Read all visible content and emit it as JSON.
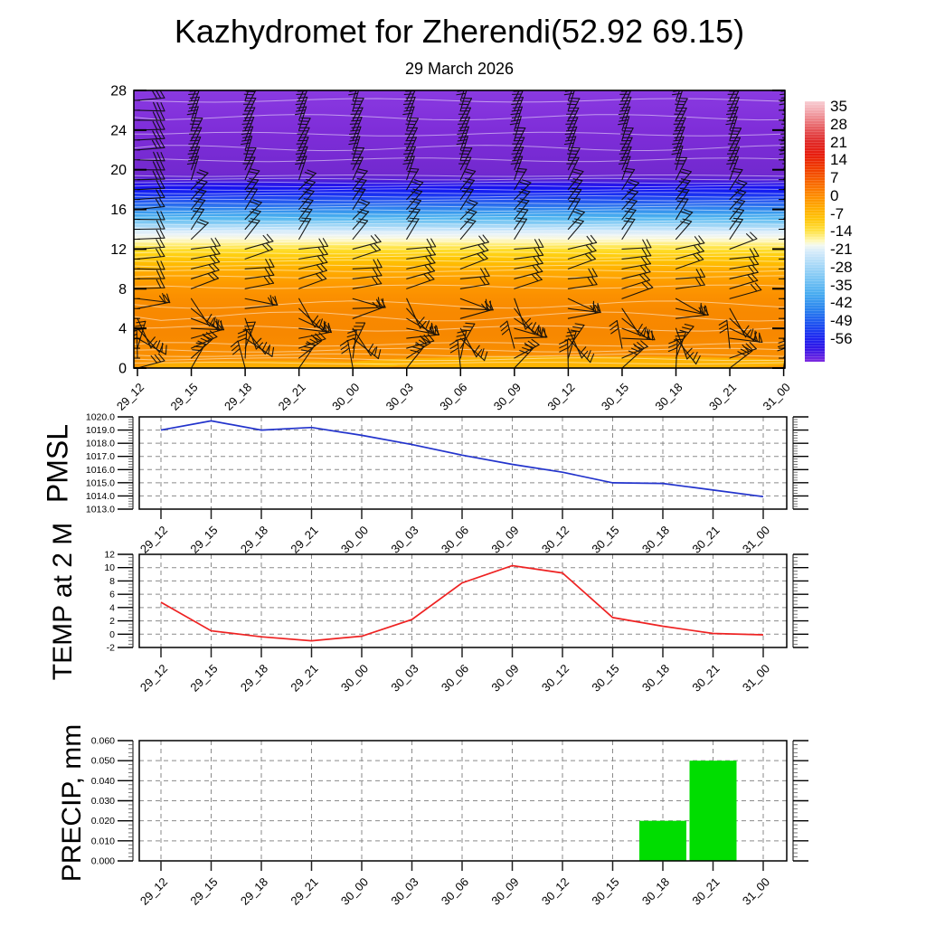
{
  "title": "Kazhydromet for Zherendi(52.92 69.15)",
  "subtitle": "29 March 2026",
  "times": [
    "29_12",
    "29_15",
    "29_18",
    "29_21",
    "30_00",
    "30_03",
    "30_06",
    "30_09",
    "30_12",
    "30_15",
    "30_18",
    "30_21",
    "31_00"
  ],
  "chart_data": [
    {
      "type": "heatmap",
      "name": "temperature-wind-cross-section",
      "x_labels": [
        "29_12",
        "29_15",
        "29_18",
        "29_21",
        "30_00",
        "30_03",
        "30_06",
        "30_09",
        "30_12",
        "30_15",
        "30_18",
        "30_21",
        "31_00"
      ],
      "y_range": [
        0,
        28
      ],
      "y_ticks": [
        0,
        4,
        8,
        12,
        16,
        20,
        24,
        28
      ],
      "colorbar_ticks": [
        35,
        28,
        21,
        14,
        7,
        0,
        -7,
        -14,
        -21,
        -28,
        -35,
        -42,
        -49,
        -56
      ],
      "gradient": [
        {
          "pos": 0.0,
          "color": "#8a3ae1"
        },
        {
          "pos": 0.15,
          "color": "#7e2dd8"
        },
        {
          "pos": 0.3,
          "color": "#7229cf"
        },
        {
          "pos": 0.322,
          "color": "#5520d6"
        },
        {
          "pos": 0.338,
          "color": "#2a15e9"
        },
        {
          "pos": 0.352,
          "color": "#1412f1"
        },
        {
          "pos": 0.368,
          "color": "#1524f1"
        },
        {
          "pos": 0.385,
          "color": "#1d41f1"
        },
        {
          "pos": 0.4,
          "color": "#2458ef"
        },
        {
          "pos": 0.42,
          "color": "#2d7bee"
        },
        {
          "pos": 0.44,
          "color": "#3a9bee"
        },
        {
          "pos": 0.458,
          "color": "#4db3f0"
        },
        {
          "pos": 0.474,
          "color": "#79c7f3"
        },
        {
          "pos": 0.49,
          "color": "#a8d9f7"
        },
        {
          "pos": 0.505,
          "color": "#cfe8fa"
        },
        {
          "pos": 0.52,
          "color": "#eaf3f6"
        },
        {
          "pos": 0.533,
          "color": "#f9f8dd"
        },
        {
          "pos": 0.547,
          "color": "#fff3a0"
        },
        {
          "pos": 0.56,
          "color": "#ffe95e"
        },
        {
          "pos": 0.575,
          "color": "#ffdd2a"
        },
        {
          "pos": 0.593,
          "color": "#ffcf10"
        },
        {
          "pos": 0.615,
          "color": "#ffc102"
        },
        {
          "pos": 0.65,
          "color": "#ffac00"
        },
        {
          "pos": 0.695,
          "color": "#fe9b00"
        },
        {
          "pos": 0.74,
          "color": "#fb9000"
        },
        {
          "pos": 0.8,
          "color": "#f88900"
        },
        {
          "pos": 0.88,
          "color": "#f78800"
        },
        {
          "pos": 0.945,
          "color": "#f98e01"
        },
        {
          "pos": 1.0,
          "color": "#fc9a05"
        }
      ],
      "colorbar_gradient": [
        {
          "pos": 0.0,
          "color": "#f8cdd3"
        },
        {
          "pos": 0.035,
          "color": "#f3abb1"
        },
        {
          "pos": 0.075,
          "color": "#ec7d82"
        },
        {
          "pos": 0.115,
          "color": "#e44f52"
        },
        {
          "pos": 0.155,
          "color": "#e02a28"
        },
        {
          "pos": 0.205,
          "color": "#e71d0e"
        },
        {
          "pos": 0.255,
          "color": "#f03c00"
        },
        {
          "pos": 0.305,
          "color": "#f76200"
        },
        {
          "pos": 0.355,
          "color": "#fd8600"
        },
        {
          "pos": 0.405,
          "color": "#ffa900"
        },
        {
          "pos": 0.455,
          "color": "#ffc70c"
        },
        {
          "pos": 0.5,
          "color": "#ffe348"
        },
        {
          "pos": 0.535,
          "color": "#fff8b4"
        },
        {
          "pos": 0.553,
          "color": "#f3f9f0"
        },
        {
          "pos": 0.575,
          "color": "#d8ecfa"
        },
        {
          "pos": 0.625,
          "color": "#abdaf8"
        },
        {
          "pos": 0.68,
          "color": "#7cc6f4"
        },
        {
          "pos": 0.74,
          "color": "#48acf0"
        },
        {
          "pos": 0.8,
          "color": "#2a82ee"
        },
        {
          "pos": 0.86,
          "color": "#1c4df0"
        },
        {
          "pos": 0.91,
          "color": "#1e26f0"
        },
        {
          "pos": 0.95,
          "color": "#3416e6"
        },
        {
          "pos": 1.0,
          "color": "#7e2ae0"
        }
      ],
      "contour_levels": [
        [
          27.0,
          2
        ],
        [
          25.3,
          3
        ],
        [
          23.6,
          2
        ],
        [
          22.2,
          3
        ],
        [
          21.0,
          2
        ],
        [
          19.4,
          0.8
        ],
        [
          19.05,
          0.8
        ],
        [
          18.7,
          0.8
        ],
        [
          18.35,
          0.8
        ],
        [
          18.0,
          0.8
        ],
        [
          17.65,
          0.8
        ],
        [
          17.3,
          0.8
        ],
        [
          16.95,
          0.8
        ],
        [
          16.6,
          0.8
        ],
        [
          16.25,
          0.8
        ],
        [
          15.9,
          0.8
        ],
        [
          15.55,
          0.8
        ],
        [
          15.2,
          0.8
        ],
        [
          14.85,
          0.8
        ],
        [
          14.5,
          0.8
        ],
        [
          14.15,
          0.8
        ],
        [
          13.8,
          0.8
        ],
        [
          13.45,
          0.8
        ],
        [
          13.1,
          0.8
        ],
        [
          12.75,
          0.8
        ],
        [
          12.4,
          0.8
        ],
        [
          12.05,
          0.8
        ],
        [
          11.6,
          1
        ],
        [
          11.2,
          1
        ],
        [
          10.8,
          1
        ],
        [
          10.3,
          1
        ],
        [
          9.8,
          1.2
        ],
        [
          9.2,
          1.2
        ],
        [
          8.2,
          2
        ],
        [
          6.4,
          4
        ],
        [
          5.2,
          5
        ],
        [
          4.0,
          3
        ],
        [
          2.4,
          2
        ],
        [
          1.8,
          2
        ],
        [
          1.3,
          1.5
        ],
        [
          0.9,
          1.5
        ],
        [
          0.5,
          1
        ]
      ],
      "wind_barb_bands": [
        {
          "min": 19,
          "max": 28,
          "angle": 68,
          "len": 27,
          "feathers": 3,
          "jitter": 6
        },
        {
          "min": 13,
          "max": 18,
          "angle": 52,
          "len": 26,
          "feathers": 2,
          "jitter": 8
        },
        {
          "min": 8,
          "max": 12,
          "angle": 12,
          "len": 32,
          "feathers": 2,
          "jitter": 9
        },
        {
          "min": 3,
          "max": 7,
          "angle": -25,
          "len": 36,
          "feathers": 2,
          "jitter": 45
        },
        {
          "min": 0,
          "max": 2,
          "angle": 60,
          "len": 31,
          "feathers": 3,
          "jitter": 45
        }
      ]
    },
    {
      "type": "line",
      "name": "PMSL",
      "x_labels": [
        "29_12",
        "29_15",
        "29_18",
        "29_21",
        "30_00",
        "30_03",
        "30_06",
        "30_09",
        "30_12",
        "30_15",
        "30_18",
        "30_21",
        "31_00"
      ],
      "values": [
        1019.0,
        1019.7,
        1019.0,
        1019.2,
        1018.6,
        1017.9,
        1017.1,
        1016.4,
        1015.8,
        1015.0,
        1014.95,
        1014.45,
        1013.95
      ],
      "ylim": [
        1013.0,
        1020.0
      ],
      "y_ticks": [
        "1020.0",
        "1019.0",
        "1018.0",
        "1017.0",
        "1016.0",
        "1015.0",
        "1014.0",
        "1013.0"
      ],
      "color": "#2233cc"
    },
    {
      "type": "line",
      "name": "TEMP at 2 M",
      "x_labels": [
        "29_12",
        "29_15",
        "29_18",
        "29_21",
        "30_00",
        "30_03",
        "30_06",
        "30_09",
        "30_12",
        "30_15",
        "30_18",
        "30_21",
        "31_00"
      ],
      "values": [
        4.8,
        0.5,
        -0.4,
        -1.0,
        -0.3,
        2.2,
        7.7,
        10.3,
        9.2,
        2.5,
        1.2,
        0.1,
        -0.1
      ],
      "ylim": [
        -2,
        12
      ],
      "y_ticks": [
        "12",
        "10",
        "8",
        "6",
        "4",
        "2",
        "0",
        "-2"
      ],
      "color": "#ee2222"
    },
    {
      "type": "bar",
      "name": "PRECIP, mm",
      "x_labels": [
        "29_12",
        "29_15",
        "29_18",
        "29_21",
        "30_00",
        "30_03",
        "30_06",
        "30_09",
        "30_12",
        "30_15",
        "30_18",
        "30_21",
        "31_00"
      ],
      "values": [
        0,
        0,
        0,
        0,
        0,
        0,
        0,
        0,
        0,
        0,
        0.02,
        0.05,
        0
      ],
      "ylim": [
        0.0,
        0.06
      ],
      "y_ticks": [
        "0.060",
        "0.050",
        "0.040",
        "0.030",
        "0.020",
        "0.010",
        "0.000"
      ],
      "color": "#00dd00"
    }
  ]
}
